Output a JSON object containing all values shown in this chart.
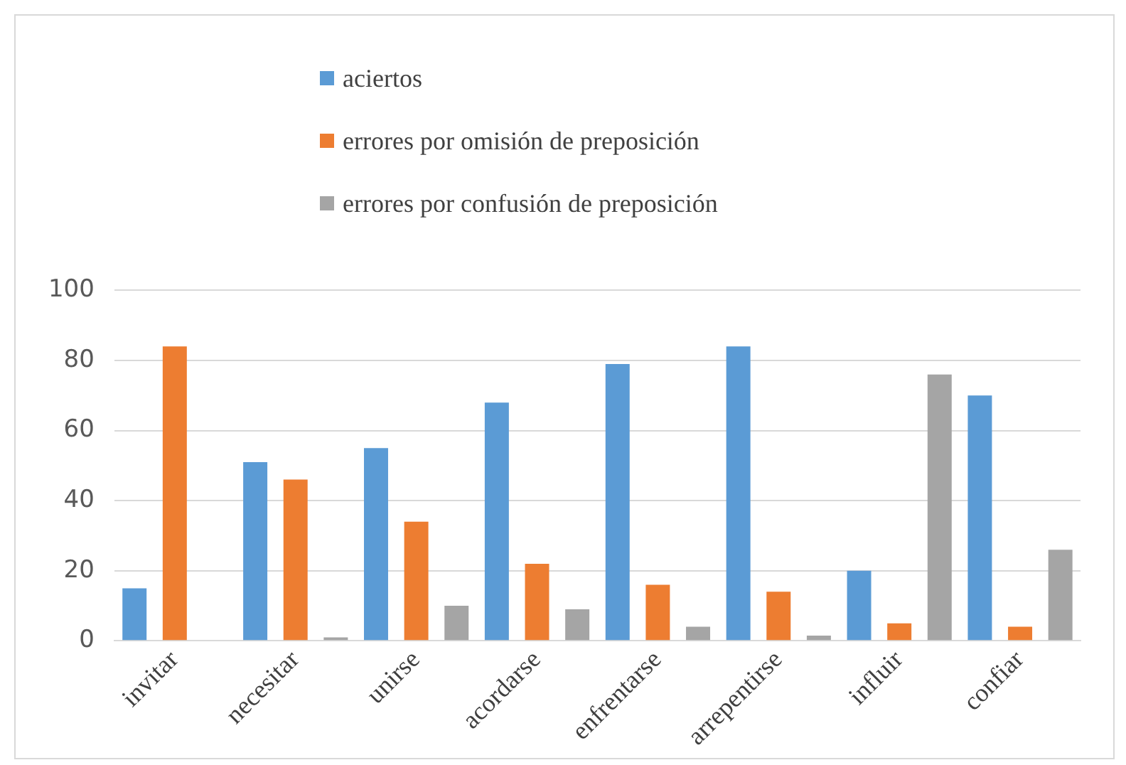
{
  "chart_data": {
    "type": "bar",
    "categories": [
      "invitar",
      "necesitar",
      "unirse",
      "acordarse",
      "enfrentarse",
      "arrepentirse",
      "influir",
      "confiar"
    ],
    "series": [
      {
        "name": "aciertos",
        "color": "#5b9bd5",
        "values": [
          15,
          51,
          55,
          68,
          79,
          84,
          20,
          70
        ]
      },
      {
        "name": "errores por omisión de preposición",
        "color": "#ed7d31",
        "values": [
          84,
          46,
          34,
          22,
          16,
          14,
          5,
          4
        ]
      },
      {
        "name": "errores por confusión de preposición",
        "color": "#a5a5a5",
        "values": [
          0,
          1,
          10,
          9,
          4,
          1.5,
          76,
          26
        ]
      }
    ],
    "ylim": [
      0,
      100
    ],
    "yticks": [
      0,
      20,
      40,
      60,
      80,
      100
    ],
    "grid": "y",
    "legend": "top left"
  }
}
